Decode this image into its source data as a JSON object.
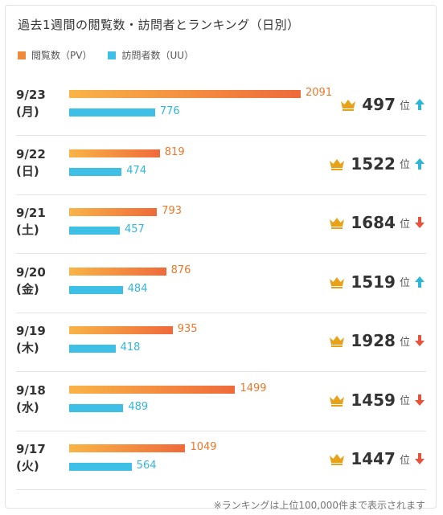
{
  "header": {
    "title": "過去1週間の閲覧数・訪問者とランキング（日別）",
    "legend_pv": "閲覧数（PV）",
    "legend_uu": "訪問者数（UU）",
    "pv_color": "#f08a3a",
    "uu_color": "#3ec0e6"
  },
  "rank_unit": "位",
  "rows": [
    {
      "date": "9/23",
      "dow": "(月)",
      "pv": 2091,
      "uu": 776,
      "rank": "497",
      "trend": "up"
    },
    {
      "date": "9/22",
      "dow": "(日)",
      "pv": 819,
      "uu": 474,
      "rank": "1522",
      "trend": "up"
    },
    {
      "date": "9/21",
      "dow": "(土)",
      "pv": 793,
      "uu": 457,
      "rank": "1684",
      "trend": "down"
    },
    {
      "date": "9/20",
      "dow": "(金)",
      "pv": 876,
      "uu": 484,
      "rank": "1519",
      "trend": "up"
    },
    {
      "date": "9/19",
      "dow": "(木)",
      "pv": 935,
      "uu": 418,
      "rank": "1928",
      "trend": "down"
    },
    {
      "date": "9/18",
      "dow": "(水)",
      "pv": 1499,
      "uu": 489,
      "rank": "1459",
      "trend": "down"
    },
    {
      "date": "9/17",
      "dow": "(火)",
      "pv": 1049,
      "uu": 564,
      "rank": "1447",
      "trend": "down"
    }
  ],
  "footnote": "※ランキングは上位100,000件まで表示されます",
  "colors": {
    "up": "#2cb7d8",
    "down": "#e8513c",
    "crown": "#e8a21a"
  }
}
